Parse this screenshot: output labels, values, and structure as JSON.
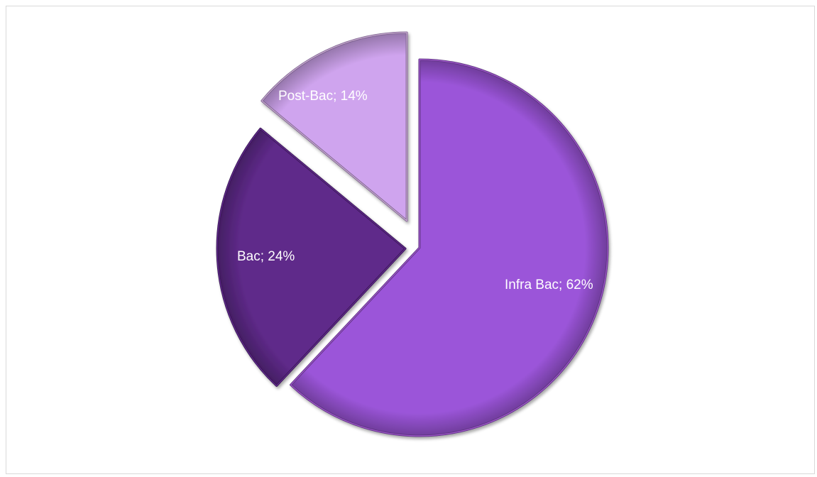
{
  "chart_data": {
    "type": "pie",
    "title": "",
    "legend": "none",
    "exploded": true,
    "slices": [
      {
        "name": "Infra Bac",
        "value": 62,
        "label": "Infra Bac; 62%",
        "color": "#9b55d9"
      },
      {
        "name": "Bac",
        "value": 24,
        "label": "Bac; 24%",
        "color": "#5f2a8a"
      },
      {
        "name": "Post-Bac",
        "value": 14,
        "label": "Post-Bac; 14%",
        "color": "#cfa4ee"
      }
    ]
  }
}
